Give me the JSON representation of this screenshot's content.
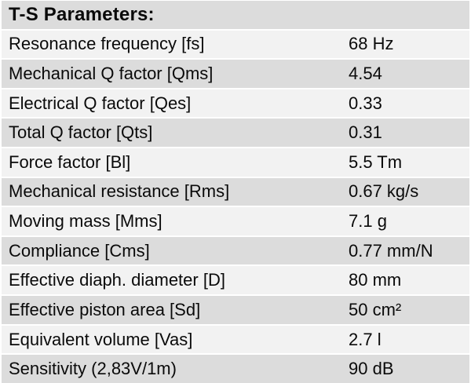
{
  "table": {
    "title": "T-S Parameters:",
    "colors": {
      "header_bg": "#dcdcdc",
      "row_light_bg": "#f2f2f2",
      "row_dark_bg": "#dcdcdc",
      "separator": "#ffffff",
      "text": "#0a0a0a"
    },
    "rows": [
      {
        "label": "Resonance frequency [fs]",
        "value": "68 Hz"
      },
      {
        "label": "Mechanical Q factor [Qms]",
        "value": "4.54"
      },
      {
        "label": "Electrical Q factor [Qes]",
        "value": "0.33"
      },
      {
        "label": "Total Q factor [Qts]",
        "value": "0.31"
      },
      {
        "label": "Force factor [Bl]",
        "value": "5.5 Tm"
      },
      {
        "label": "Mechanical resistance [Rms]",
        "value": "0.67 kg/s"
      },
      {
        "label": "Moving mass [Mms]",
        "value": "7.1 g"
      },
      {
        "label": "Compliance [Cms]",
        "value": "0.77 mm/N"
      },
      {
        "label": "Effective diaph. diameter [D]",
        "value": "80 mm"
      },
      {
        "label": "Effective piston area [Sd]",
        "value": "50 cm²"
      },
      {
        "label": "Equivalent volume [Vas]",
        "value": "2.7 l"
      },
      {
        "label": "Sensitivity (2,83V/1m)",
        "value": "90 dB"
      }
    ]
  }
}
